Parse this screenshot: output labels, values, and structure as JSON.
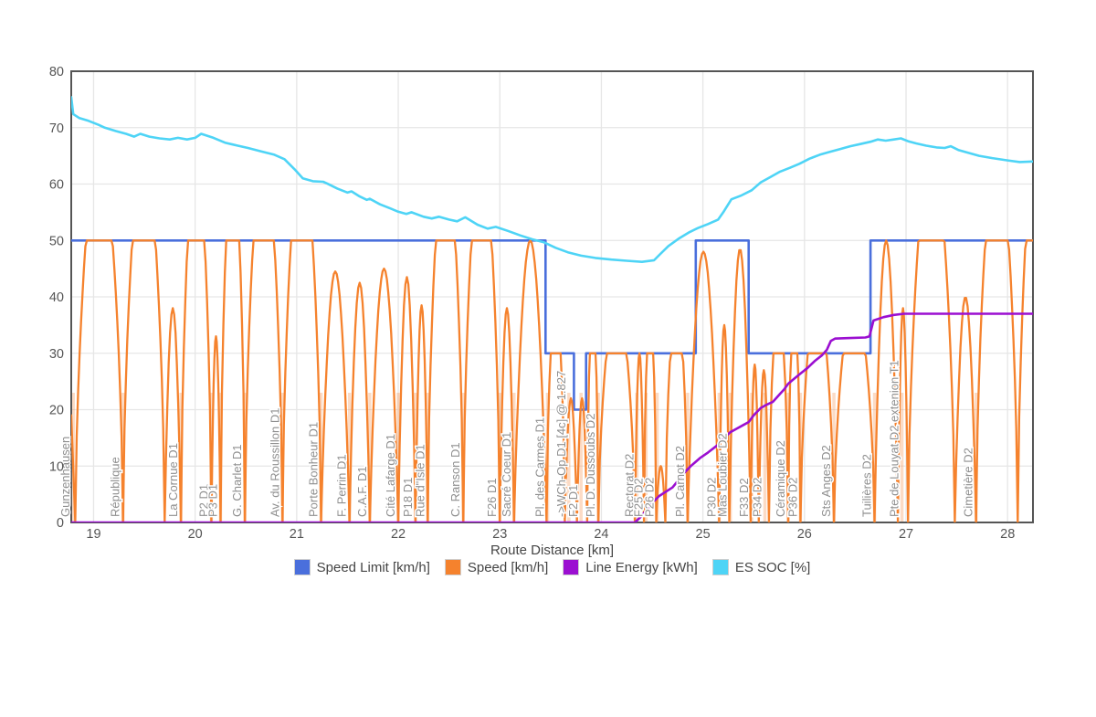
{
  "page": {
    "background": "#ffffff"
  },
  "chart_data": {
    "type": "line",
    "title": "",
    "xlabel": "Route Distance [km]",
    "x_range": [
      18.78,
      28.25
    ],
    "y_range": [
      0,
      80
    ],
    "x_ticks": [
      19,
      20,
      21,
      22,
      23,
      24,
      25,
      26,
      27,
      28
    ],
    "y_ticks": [
      0,
      10,
      20,
      30,
      40,
      50,
      60,
      70,
      80
    ],
    "grid": true,
    "legend_position": "bottom",
    "series": [
      {
        "id": "speed_limit",
        "label": "Speed Limit [km/h]",
        "color": "#4a6fdc"
      },
      {
        "id": "speed",
        "label": "Speed [km/h]",
        "color": "#f5822d"
      },
      {
        "id": "line_energy",
        "label": "Line Energy [kWh]",
        "color": "#9b0fd1"
      },
      {
        "id": "es_soc",
        "label": "ES SOC [%]",
        "color": "#4ed4f6"
      }
    ],
    "speed_limit_points": [
      [
        18.78,
        50
      ],
      [
        23.45,
        50
      ],
      [
        23.45,
        30
      ],
      [
        23.73,
        30
      ],
      [
        23.73,
        20
      ],
      [
        23.85,
        20
      ],
      [
        23.85,
        30
      ],
      [
        24.93,
        30
      ],
      [
        24.93,
        50
      ],
      [
        25.45,
        50
      ],
      [
        25.45,
        30
      ],
      [
        26.65,
        30
      ],
      [
        26.65,
        50
      ],
      [
        28.25,
        50
      ]
    ],
    "speed_lead_in": [
      [
        18.78,
        19
      ],
      [
        18.82,
        0
      ]
    ],
    "speed_humps": [
      [
        18.82,
        19.29,
        50,
        1
      ],
      [
        19.29,
        19.7,
        50,
        1
      ],
      [
        19.7,
        19.86,
        38,
        0
      ],
      [
        19.86,
        20.16,
        50,
        1
      ],
      [
        20.16,
        20.25,
        33,
        0
      ],
      [
        20.25,
        20.49,
        50,
        1
      ],
      [
        20.49,
        20.86,
        50,
        1
      ],
      [
        20.86,
        21.24,
        50,
        1
      ],
      [
        21.24,
        21.52,
        44.5,
        0
      ],
      [
        21.52,
        21.72,
        42.5,
        0
      ],
      [
        21.72,
        22.0,
        45,
        0
      ],
      [
        22.0,
        22.17,
        43.5,
        0
      ],
      [
        22.17,
        22.29,
        38.5,
        0
      ],
      [
        22.29,
        22.64,
        50,
        1
      ],
      [
        22.64,
        23.0,
        50,
        1
      ],
      [
        23.0,
        23.14,
        38,
        0
      ],
      [
        23.14,
        23.46,
        50,
        0
      ],
      [
        23.46,
        23.64,
        30,
        1
      ],
      [
        23.64,
        23.76,
        22,
        0
      ],
      [
        23.76,
        23.86,
        22,
        0
      ],
      [
        23.86,
        23.97,
        30,
        1
      ],
      [
        23.97,
        24.33,
        30,
        1
      ],
      [
        24.33,
        24.42,
        30,
        0
      ],
      [
        24.42,
        24.54,
        30,
        1
      ],
      [
        24.54,
        24.63,
        10,
        0
      ],
      [
        24.63,
        24.85,
        30,
        1
      ],
      [
        24.85,
        25.16,
        48,
        0
      ],
      [
        25.16,
        25.26,
        35,
        0
      ],
      [
        25.26,
        25.47,
        48.5,
        0
      ],
      [
        25.47,
        25.55,
        28,
        0
      ],
      [
        25.55,
        25.65,
        27,
        0
      ],
      [
        25.65,
        25.84,
        30,
        1
      ],
      [
        25.84,
        25.96,
        30,
        1
      ],
      [
        25.96,
        26.29,
        30,
        1
      ],
      [
        26.29,
        26.69,
        30,
        1
      ],
      [
        26.69,
        26.92,
        50,
        0
      ],
      [
        26.92,
        27.02,
        38,
        0
      ],
      [
        27.02,
        27.48,
        50,
        1
      ],
      [
        27.48,
        27.69,
        40,
        0
      ],
      [
        27.69,
        28.1,
        50,
        1
      ],
      [
        28.1,
        28.45,
        50,
        1
      ]
    ],
    "line_energy_points": [
      [
        18.78,
        0
      ],
      [
        24.33,
        0
      ],
      [
        24.4,
        1.2
      ],
      [
        24.46,
        2.6
      ],
      [
        24.52,
        3.8
      ],
      [
        24.57,
        4.7
      ],
      [
        24.63,
        5.4
      ],
      [
        24.7,
        6.2
      ],
      [
        24.75,
        7.3
      ],
      [
        24.8,
        8.5
      ],
      [
        24.88,
        10.0
      ],
      [
        24.97,
        11.4
      ],
      [
        25.05,
        12.4
      ],
      [
        25.15,
        13.8
      ],
      [
        25.22,
        15.2
      ],
      [
        25.27,
        16.0
      ],
      [
        25.33,
        16.6
      ],
      [
        25.4,
        17.3
      ],
      [
        25.45,
        17.8
      ],
      [
        25.5,
        19.0
      ],
      [
        25.57,
        20.3
      ],
      [
        25.63,
        20.9
      ],
      [
        25.69,
        21.4
      ],
      [
        25.75,
        22.6
      ],
      [
        25.8,
        23.6
      ],
      [
        25.84,
        24.6
      ],
      [
        25.9,
        25.5
      ],
      [
        25.96,
        26.4
      ],
      [
        26.03,
        27.4
      ],
      [
        26.1,
        28.6
      ],
      [
        26.17,
        29.6
      ],
      [
        26.22,
        30.6
      ],
      [
        26.26,
        32.2
      ],
      [
        26.3,
        32.6
      ],
      [
        26.45,
        32.7
      ],
      [
        26.6,
        32.8
      ],
      [
        26.64,
        33.0
      ],
      [
        26.68,
        35.8
      ],
      [
        26.78,
        36.4
      ],
      [
        26.88,
        36.8
      ],
      [
        26.98,
        37.0
      ],
      [
        28.25,
        37.0
      ]
    ],
    "es_soc_points": [
      [
        18.78,
        75.4
      ],
      [
        18.8,
        72.4
      ],
      [
        18.86,
        71.7
      ],
      [
        18.95,
        71.2
      ],
      [
        19.05,
        70.5
      ],
      [
        19.11,
        70.0
      ],
      [
        19.22,
        69.4
      ],
      [
        19.32,
        68.9
      ],
      [
        19.4,
        68.4
      ],
      [
        19.46,
        68.9
      ],
      [
        19.55,
        68.4
      ],
      [
        19.65,
        68.1
      ],
      [
        19.75,
        67.9
      ],
      [
        19.83,
        68.2
      ],
      [
        19.92,
        67.9
      ],
      [
        20.0,
        68.2
      ],
      [
        20.06,
        68.9
      ],
      [
        20.18,
        68.2
      ],
      [
        20.3,
        67.3
      ],
      [
        20.42,
        66.8
      ],
      [
        20.52,
        66.4
      ],
      [
        20.65,
        65.8
      ],
      [
        20.78,
        65.2
      ],
      [
        20.88,
        64.4
      ],
      [
        20.98,
        62.6
      ],
      [
        21.06,
        61.0
      ],
      [
        21.16,
        60.5
      ],
      [
        21.26,
        60.4
      ],
      [
        21.3,
        60.1
      ],
      [
        21.4,
        59.2
      ],
      [
        21.5,
        58.5
      ],
      [
        21.54,
        58.7
      ],
      [
        21.62,
        57.8
      ],
      [
        21.69,
        57.2
      ],
      [
        21.72,
        57.4
      ],
      [
        21.82,
        56.4
      ],
      [
        21.92,
        55.7
      ],
      [
        22.0,
        55.1
      ],
      [
        22.08,
        54.7
      ],
      [
        22.13,
        55.0
      ],
      [
        22.25,
        54.2
      ],
      [
        22.33,
        53.9
      ],
      [
        22.4,
        54.2
      ],
      [
        22.5,
        53.7
      ],
      [
        22.58,
        53.4
      ],
      [
        22.66,
        54.1
      ],
      [
        22.78,
        52.8
      ],
      [
        22.88,
        52.1
      ],
      [
        22.96,
        52.4
      ],
      [
        23.08,
        51.7
      ],
      [
        23.2,
        50.9
      ],
      [
        23.32,
        50.2
      ],
      [
        23.43,
        49.7
      ],
      [
        23.55,
        48.7
      ],
      [
        23.67,
        47.9
      ],
      [
        23.8,
        47.3
      ],
      [
        23.94,
        46.9
      ],
      [
        24.1,
        46.6
      ],
      [
        24.25,
        46.4
      ],
      [
        24.4,
        46.2
      ],
      [
        24.52,
        46.5
      ],
      [
        24.58,
        47.6
      ],
      [
        24.66,
        49.0
      ],
      [
        24.76,
        50.3
      ],
      [
        24.86,
        51.4
      ],
      [
        24.95,
        52.2
      ],
      [
        25.05,
        52.9
      ],
      [
        25.15,
        53.7
      ],
      [
        25.2,
        55.0
      ],
      [
        25.28,
        57.3
      ],
      [
        25.38,
        58.0
      ],
      [
        25.48,
        58.9
      ],
      [
        25.57,
        60.3
      ],
      [
        25.66,
        61.2
      ],
      [
        25.76,
        62.2
      ],
      [
        25.86,
        62.9
      ],
      [
        25.95,
        63.6
      ],
      [
        26.05,
        64.5
      ],
      [
        26.15,
        65.2
      ],
      [
        26.25,
        65.7
      ],
      [
        26.35,
        66.2
      ],
      [
        26.45,
        66.7
      ],
      [
        26.55,
        67.1
      ],
      [
        26.65,
        67.5
      ],
      [
        26.72,
        67.9
      ],
      [
        26.8,
        67.7
      ],
      [
        26.88,
        67.9
      ],
      [
        26.95,
        68.1
      ],
      [
        27.02,
        67.6
      ],
      [
        27.1,
        67.2
      ],
      [
        27.2,
        66.8
      ],
      [
        27.3,
        66.5
      ],
      [
        27.38,
        66.4
      ],
      [
        27.44,
        66.7
      ],
      [
        27.52,
        66.0
      ],
      [
        27.62,
        65.5
      ],
      [
        27.72,
        65.0
      ],
      [
        27.85,
        64.6
      ],
      [
        28.0,
        64.2
      ],
      [
        28.12,
        63.9
      ],
      [
        28.25,
        64.0
      ]
    ],
    "stations": [
      {
        "name": "Gunzenhausen",
        "km": 18.8
      },
      {
        "name": "République",
        "km": 19.29
      },
      {
        "name": "La Cornue D1",
        "km": 19.86
      },
      {
        "name": "P2 D1",
        "km": 20.16
      },
      {
        "name": "P3 D1",
        "km": 20.25
      },
      {
        "name": "G. Charlet D1",
        "km": 20.49
      },
      {
        "name": "Av. du Roussillon D1",
        "km": 20.86
      },
      {
        "name": "Porte Bonheur D1",
        "km": 21.24
      },
      {
        "name": "F. Perrin D1",
        "km": 21.52
      },
      {
        "name": "C.A.F. D1",
        "km": 21.72
      },
      {
        "name": "Cité Lafarge D1",
        "km": 22.0
      },
      {
        "name": "P18 D1",
        "km": 22.17
      },
      {
        "name": "Rue d\"Isle D1",
        "km": 22.29
      },
      {
        "name": "C. Ranson D1",
        "km": 22.64
      },
      {
        "name": "F26 D1",
        "km": 23.0
      },
      {
        "name": "Sacré Coeur D1",
        "km": 23.14
      },
      {
        "name": "Pl. des Carmes D1",
        "km": 23.47
      },
      {
        "name": "->WCh-Op D1 [4c] @ 1.827",
        "km": 23.68
      },
      {
        "name": "F2 D1",
        "km": 23.8
      },
      {
        "name": "Pl. D. Dussoubs D2",
        "km": 23.97
      },
      {
        "name": "Rectorat D2",
        "km": 24.35
      },
      {
        "name": "F25 D2",
        "km": 24.44
      },
      {
        "name": "P26 D2",
        "km": 24.55
      },
      {
        "name": "Pl. Carnot D2",
        "km": 24.85
      },
      {
        "name": "P30 D2",
        "km": 25.16
      },
      {
        "name": "Mas Loubier D2",
        "km": 25.27
      },
      {
        "name": "F33 D2",
        "km": 25.48
      },
      {
        "name": "P34 D2",
        "km": 25.61
      },
      {
        "name": "Céramique D2",
        "km": 25.84
      },
      {
        "name": "P36 D2",
        "km": 25.96
      },
      {
        "name": "Sts Anges D2",
        "km": 26.29
      },
      {
        "name": "Tuilières D2",
        "km": 26.69
      },
      {
        "name": "Pte de Louyat D2 extenion T1",
        "km": 26.96
      },
      {
        "name": "Cimetière D2",
        "km": 27.69
      }
    ],
    "style": {
      "grid_color": "#e6e6e6",
      "axis_color": "#555555",
      "tick_color": "#555555",
      "station_label_color": "#8f8f8f",
      "station_marker_color": "rgba(246,147,80,0.33)"
    }
  }
}
